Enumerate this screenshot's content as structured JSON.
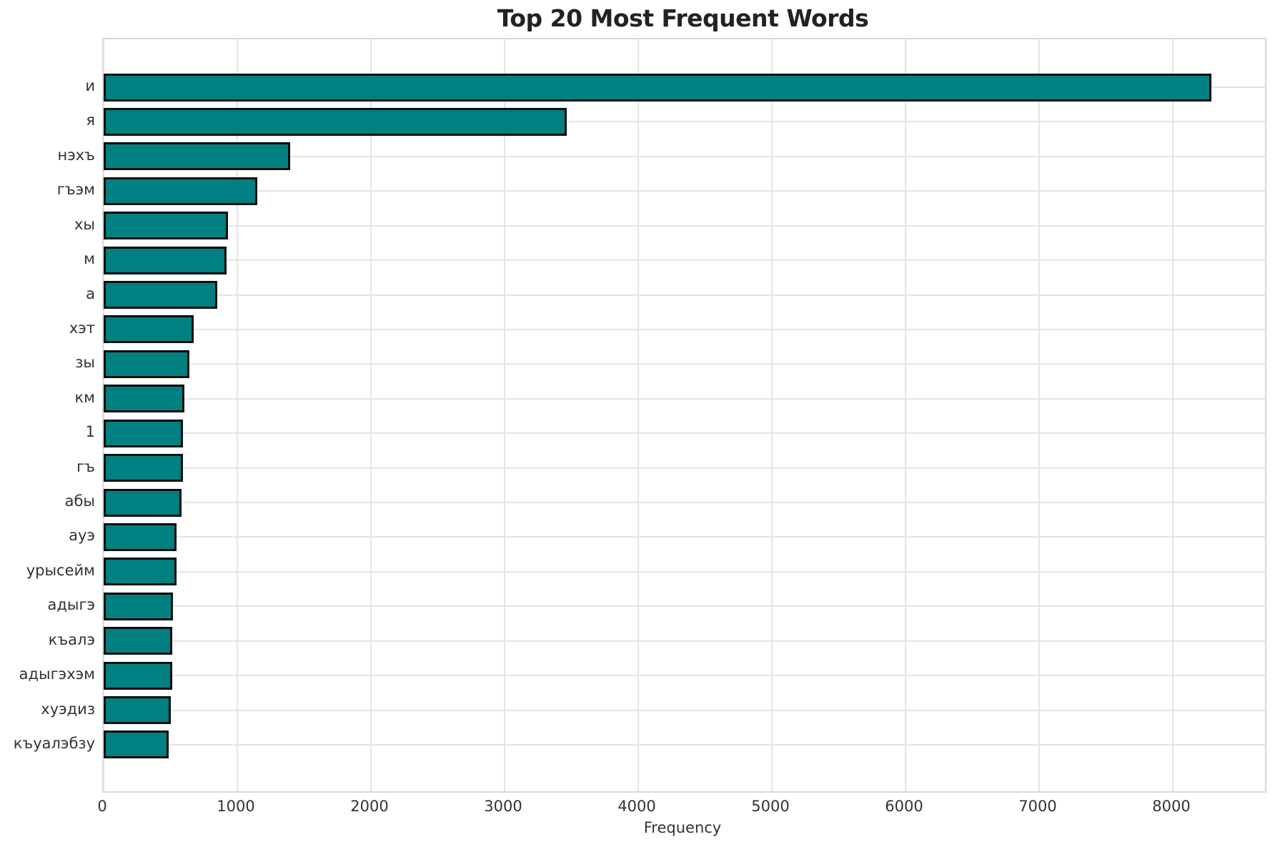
{
  "chart_data": {
    "type": "bar",
    "orientation": "horizontal",
    "title": "Top 20 Most Frequent Words",
    "xlabel": "Frequency",
    "ylabel": "",
    "categories": [
      "и",
      "я",
      "нэхъ",
      "гъэм",
      "хы",
      "м",
      "а",
      "хэт",
      "зы",
      "км",
      "1",
      "гъ",
      "абы",
      "ауэ",
      "урысейм",
      "адыгэ",
      "къалэ",
      "адыгэхэм",
      "хуэдиз",
      "къуалэбзу"
    ],
    "values": [
      8290,
      3465,
      1395,
      1150,
      930,
      920,
      850,
      672,
      640,
      604,
      596,
      594,
      585,
      548,
      546,
      519,
      515,
      513,
      503,
      488
    ],
    "xlim": [
      0,
      8690
    ],
    "x_ticks": [
      0,
      1000,
      2000,
      3000,
      4000,
      5000,
      6000,
      7000,
      8000
    ],
    "grid": true,
    "legend": "none",
    "bar_color": "#008080",
    "bar_edge_color": "#0d0d0d",
    "grid_color": "#e4e4e4",
    "frame_color": "#d8d8d8",
    "text_color": "#333333",
    "title_color": "#222222",
    "background_color": "#ffffff"
  }
}
